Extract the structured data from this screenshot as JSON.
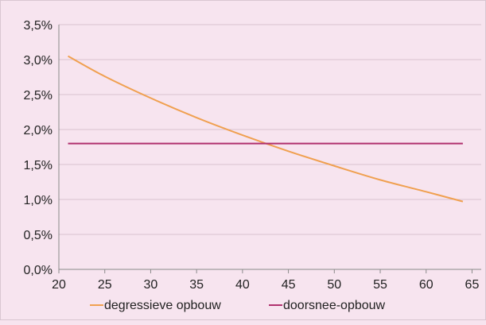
{
  "chart_data": {
    "type": "line",
    "title": "",
    "xlabel": "",
    "ylabel": "",
    "xlim": [
      20,
      66
    ],
    "ylim": [
      0.0,
      3.5
    ],
    "x_ticks": [
      20,
      25,
      30,
      35,
      40,
      45,
      50,
      55,
      60,
      65
    ],
    "x_tick_labels": [
      "20",
      "25",
      "30",
      "35",
      "40",
      "45",
      "50",
      "55",
      "60",
      "65"
    ],
    "y_ticks": [
      0.0,
      0.5,
      1.0,
      1.5,
      2.0,
      2.5,
      3.0,
      3.5
    ],
    "y_tick_labels": [
      "0,0%",
      "0,5%",
      "1,0%",
      "1,5%",
      "2,0%",
      "2,5%",
      "3,0%",
      "3,5%"
    ],
    "grid": true,
    "legend_position": "bottom",
    "series": [
      {
        "name": "degressieve opbouw",
        "color": "#f0a050",
        "x": [
          21,
          25,
          30,
          35,
          40,
          45,
          50,
          55,
          60,
          64
        ],
        "y": [
          3.05,
          2.76,
          2.45,
          2.17,
          1.92,
          1.69,
          1.48,
          1.28,
          1.11,
          0.97
        ]
      },
      {
        "name": "doorsnee-opbouw",
        "color": "#b0306e",
        "x": [
          21,
          64
        ],
        "y": [
          1.8,
          1.8
        ]
      }
    ]
  }
}
